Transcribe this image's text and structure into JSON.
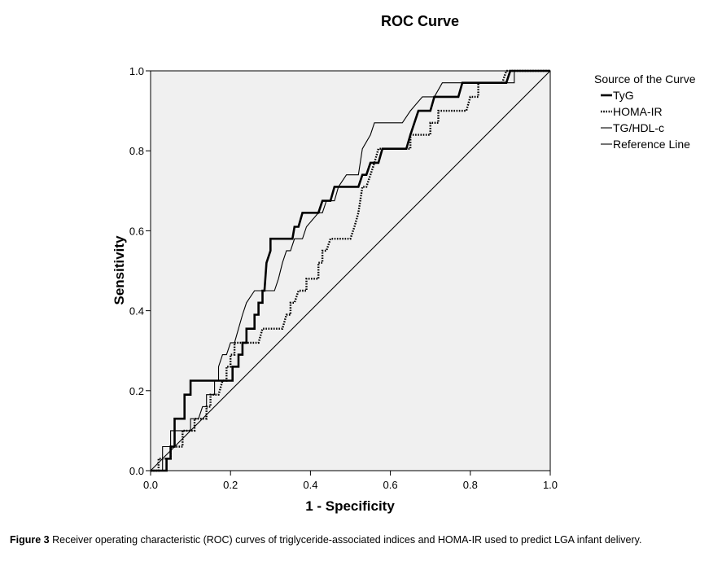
{
  "chart_data": {
    "type": "line",
    "title": "ROC Curve",
    "xlabel": "1 - Specificity",
    "ylabel": "Sensitivity",
    "xlim": [
      0,
      1
    ],
    "ylim": [
      0,
      1
    ],
    "xticks": [
      "0.0",
      "0.2",
      "0.4",
      "0.6",
      "0.8",
      "1.0"
    ],
    "yticks": [
      "0.0",
      "0.2",
      "0.4",
      "0.6",
      "0.8",
      "1.0"
    ],
    "legend_title": "Source of the Curve",
    "legend_position": "right",
    "series": [
      {
        "name": "TyG",
        "style": "thick",
        "points": [
          [
            0,
            0
          ],
          [
            0.04,
            0
          ],
          [
            0.04,
            0.03
          ],
          [
            0.05,
            0.03
          ],
          [
            0.05,
            0.06
          ],
          [
            0.06,
            0.06
          ],
          [
            0.06,
            0.13
          ],
          [
            0.085,
            0.13
          ],
          [
            0.085,
            0.19
          ],
          [
            0.1,
            0.19
          ],
          [
            0.1,
            0.225
          ],
          [
            0.205,
            0.225
          ],
          [
            0.205,
            0.26
          ],
          [
            0.22,
            0.26
          ],
          [
            0.22,
            0.29
          ],
          [
            0.23,
            0.29
          ],
          [
            0.23,
            0.32
          ],
          [
            0.24,
            0.32
          ],
          [
            0.24,
            0.355
          ],
          [
            0.26,
            0.355
          ],
          [
            0.26,
            0.39
          ],
          [
            0.27,
            0.39
          ],
          [
            0.27,
            0.42
          ],
          [
            0.28,
            0.42
          ],
          [
            0.28,
            0.45
          ],
          [
            0.285,
            0.45
          ],
          [
            0.29,
            0.52
          ],
          [
            0.3,
            0.55
          ],
          [
            0.3,
            0.58
          ],
          [
            0.355,
            0.58
          ],
          [
            0.36,
            0.61
          ],
          [
            0.37,
            0.61
          ],
          [
            0.38,
            0.645
          ],
          [
            0.42,
            0.645
          ],
          [
            0.43,
            0.675
          ],
          [
            0.45,
            0.675
          ],
          [
            0.46,
            0.71
          ],
          [
            0.52,
            0.71
          ],
          [
            0.53,
            0.74
          ],
          [
            0.54,
            0.74
          ],
          [
            0.55,
            0.77
          ],
          [
            0.57,
            0.77
          ],
          [
            0.58,
            0.805
          ],
          [
            0.64,
            0.805
          ],
          [
            0.65,
            0.84
          ],
          [
            0.66,
            0.87
          ],
          [
            0.67,
            0.9
          ],
          [
            0.7,
            0.9
          ],
          [
            0.71,
            0.935
          ],
          [
            0.77,
            0.935
          ],
          [
            0.78,
            0.97
          ],
          [
            0.89,
            0.97
          ],
          [
            0.9,
            1
          ],
          [
            1,
            1
          ]
        ]
      },
      {
        "name": "HOMA-IR",
        "style": "dotted",
        "points": [
          [
            0,
            0
          ],
          [
            0.02,
            0
          ],
          [
            0.02,
            0.03
          ],
          [
            0.05,
            0.03
          ],
          [
            0.05,
            0.06
          ],
          [
            0.08,
            0.06
          ],
          [
            0.08,
            0.1
          ],
          [
            0.11,
            0.1
          ],
          [
            0.11,
            0.13
          ],
          [
            0.14,
            0.13
          ],
          [
            0.14,
            0.16
          ],
          [
            0.15,
            0.16
          ],
          [
            0.15,
            0.19
          ],
          [
            0.17,
            0.19
          ],
          [
            0.18,
            0.225
          ],
          [
            0.19,
            0.225
          ],
          [
            0.19,
            0.26
          ],
          [
            0.2,
            0.26
          ],
          [
            0.2,
            0.29
          ],
          [
            0.21,
            0.29
          ],
          [
            0.21,
            0.32
          ],
          [
            0.27,
            0.32
          ],
          [
            0.28,
            0.355
          ],
          [
            0.33,
            0.355
          ],
          [
            0.34,
            0.39
          ],
          [
            0.35,
            0.39
          ],
          [
            0.35,
            0.42
          ],
          [
            0.36,
            0.42
          ],
          [
            0.37,
            0.45
          ],
          [
            0.39,
            0.45
          ],
          [
            0.39,
            0.48
          ],
          [
            0.42,
            0.48
          ],
          [
            0.42,
            0.52
          ],
          [
            0.43,
            0.52
          ],
          [
            0.43,
            0.55
          ],
          [
            0.44,
            0.55
          ],
          [
            0.45,
            0.58
          ],
          [
            0.5,
            0.58
          ],
          [
            0.51,
            0.61
          ],
          [
            0.52,
            0.645
          ],
          [
            0.53,
            0.71
          ],
          [
            0.54,
            0.71
          ],
          [
            0.55,
            0.74
          ],
          [
            0.56,
            0.77
          ],
          [
            0.57,
            0.805
          ],
          [
            0.65,
            0.805
          ],
          [
            0.65,
            0.84
          ],
          [
            0.7,
            0.84
          ],
          [
            0.7,
            0.87
          ],
          [
            0.72,
            0.87
          ],
          [
            0.72,
            0.9
          ],
          [
            0.79,
            0.9
          ],
          [
            0.8,
            0.935
          ],
          [
            0.82,
            0.935
          ],
          [
            0.82,
            0.97
          ],
          [
            0.88,
            0.97
          ],
          [
            0.89,
            1
          ],
          [
            1,
            1
          ]
        ]
      },
      {
        "name": "TG/HDL-c",
        "style": "thin",
        "points": [
          [
            0,
            0
          ],
          [
            0.03,
            0
          ],
          [
            0.03,
            0.06
          ],
          [
            0.05,
            0.06
          ],
          [
            0.05,
            0.1
          ],
          [
            0.1,
            0.1
          ],
          [
            0.1,
            0.13
          ],
          [
            0.12,
            0.13
          ],
          [
            0.13,
            0.16
          ],
          [
            0.14,
            0.16
          ],
          [
            0.14,
            0.19
          ],
          [
            0.16,
            0.19
          ],
          [
            0.16,
            0.225
          ],
          [
            0.17,
            0.225
          ],
          [
            0.17,
            0.26
          ],
          [
            0.18,
            0.29
          ],
          [
            0.19,
            0.29
          ],
          [
            0.2,
            0.32
          ],
          [
            0.21,
            0.32
          ],
          [
            0.22,
            0.355
          ],
          [
            0.23,
            0.39
          ],
          [
            0.24,
            0.42
          ],
          [
            0.26,
            0.45
          ],
          [
            0.31,
            0.45
          ],
          [
            0.32,
            0.48
          ],
          [
            0.33,
            0.52
          ],
          [
            0.34,
            0.55
          ],
          [
            0.35,
            0.55
          ],
          [
            0.36,
            0.58
          ],
          [
            0.38,
            0.58
          ],
          [
            0.39,
            0.61
          ],
          [
            0.42,
            0.645
          ],
          [
            0.43,
            0.645
          ],
          [
            0.44,
            0.675
          ],
          [
            0.46,
            0.675
          ],
          [
            0.47,
            0.71
          ],
          [
            0.49,
            0.74
          ],
          [
            0.52,
            0.74
          ],
          [
            0.53,
            0.805
          ],
          [
            0.55,
            0.84
          ],
          [
            0.56,
            0.87
          ],
          [
            0.63,
            0.87
          ],
          [
            0.65,
            0.9
          ],
          [
            0.68,
            0.935
          ],
          [
            0.71,
            0.935
          ],
          [
            0.73,
            0.97
          ],
          [
            0.91,
            0.97
          ],
          [
            0.91,
            1
          ],
          [
            1,
            1
          ]
        ]
      },
      {
        "name": "Reference Line",
        "style": "reference",
        "points": [
          [
            0,
            0
          ],
          [
            1,
            1
          ]
        ]
      }
    ]
  },
  "caption": {
    "label": "Figure 3",
    "text": " Receiver operating characteristic (ROC) curves of triglyceride-associated indices and HOMA-IR used to predict LGA infant delivery."
  }
}
